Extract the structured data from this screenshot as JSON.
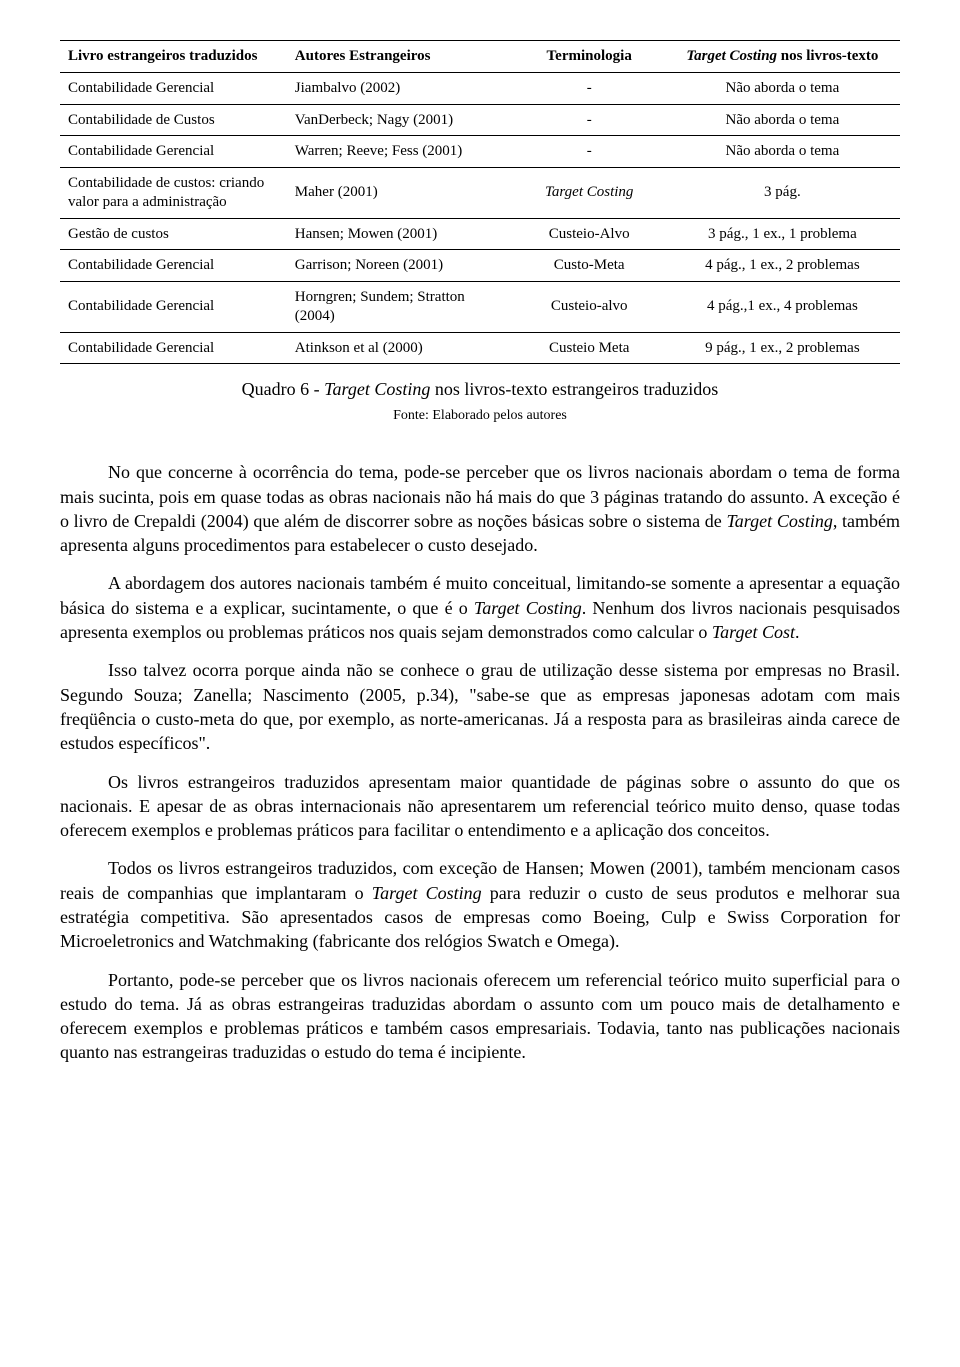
{
  "table": {
    "headers": {
      "book": "Livro estrangeiros traduzidos",
      "author": "Autores Estrangeiros",
      "term": "Terminologia",
      "target_prefix": "Target Costing",
      "target_suffix": " nos livros-texto"
    },
    "rows": [
      {
        "book": "Contabilidade Gerencial",
        "author": "Jiambalvo (2002)",
        "term": "-",
        "target": "Não aborda o tema"
      },
      {
        "book": "Contabilidade de Custos",
        "author": "VanDerbeck; Nagy (2001)",
        "term": "-",
        "target": "Não aborda o tema"
      },
      {
        "book": "Contabilidade Gerencial",
        "author": "Warren; Reeve; Fess (2001)",
        "term": "-",
        "target": "Não aborda o tema"
      },
      {
        "book": "Contabilidade de custos: criando valor para a administração",
        "author": "Maher (2001)",
        "term_italic": "Target Costing",
        "target": "3 pág."
      },
      {
        "book": "Gestão de custos",
        "author": "Hansen; Mowen (2001)",
        "term": "Custeio-Alvo",
        "target": "3 pág., 1 ex., 1 problema"
      },
      {
        "book": "Contabilidade Gerencial",
        "author": "Garrison; Noreen (2001)",
        "term": "Custo-Meta",
        "target": "4 pág., 1 ex., 2 problemas"
      },
      {
        "book": "Contabilidade Gerencial",
        "author": "Horngren; Sundem; Stratton (2004)",
        "term": "Custeio-alvo",
        "target": "4 pág.,1 ex., 4 problemas"
      },
      {
        "book": "Contabilidade Gerencial",
        "author": "Atinkson et al (2000)",
        "term": "Custeio Meta",
        "target": "9 pág., 1 ex., 2 problemas"
      }
    ]
  },
  "caption_prefix": "Quadro 6 - ",
  "caption_italic": "Target Costing",
  "caption_suffix": " nos livros-texto estrangeiros traduzidos",
  "source": "Fonte: Elaborado pelos autores",
  "paragraphs": {
    "p1a": "No que concerne à ocorrência do tema, pode-se perceber que os livros nacionais abordam o tema de forma mais sucinta, pois em quase todas as obras nacionais não há mais do que 3 páginas tratando do assunto. A exceção é o livro de Crepaldi (2004) que além de discorrer sobre as noções básicas sobre o sistema de ",
    "p1i": "Target Costing",
    "p1b": ", também apresenta alguns procedimentos para estabelecer o custo desejado.",
    "p2a": "A abordagem dos autores nacionais também é muito conceitual, limitando-se somente a apresentar a equação básica do sistema e a explicar, sucintamente, o que é o ",
    "p2i": "Target Costing",
    "p2b": ". Nenhum dos livros nacionais pesquisados apresenta exemplos ou problemas práticos nos quais sejam demonstrados como calcular o ",
    "p2i2": "Target Cost",
    "p2c": ".",
    "p3": "Isso talvez ocorra porque ainda não se conhece o grau de utilização desse sistema por empresas no Brasil. Segundo Souza; Zanella; Nascimento (2005, p.34), \"sabe-se que as empresas japonesas adotam com mais freqüência o custo-meta do que, por exemplo, as norte-americanas. Já a resposta para as brasileiras ainda carece de estudos específicos\".",
    "p4": "Os livros estrangeiros traduzidos apresentam maior quantidade de páginas sobre o assunto do que os nacionais. E apesar de as obras internacionais não apresentarem um referencial teórico muito denso, quase todas oferecem exemplos e problemas práticos para facilitar o entendimento e a aplicação dos conceitos.",
    "p5a": "Todos os livros estrangeiros traduzidos, com exceção de Hansen; Mowen (2001), também mencionam casos reais de companhias que implantaram o ",
    "p5i": "Target Costing",
    "p5b": " para reduzir o custo de seus produtos e melhorar sua estratégia competitiva. São apresentados casos de empresas como Boeing, Culp e Swiss Corporation for Microeletronics and Watchmaking (fabricante dos relógios Swatch e Omega).",
    "p6": "Portanto, pode-se perceber que os livros nacionais oferecem um referencial teórico muito superficial para o estudo do tema.  Já as obras estrangeiras traduzidas abordam o assunto com um pouco mais de detalhamento e oferecem exemplos e problemas práticos e também casos empresariais. Todavia, tanto nas publicações nacionais quanto nas estrangeiras traduzidas o estudo do tema é incipiente."
  }
}
